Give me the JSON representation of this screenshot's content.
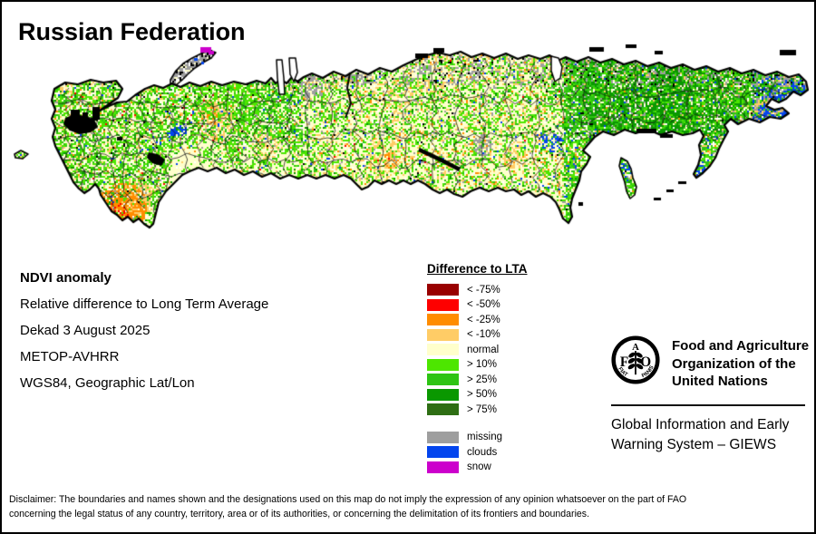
{
  "page": {
    "title": "Russian Federation"
  },
  "info": {
    "heading": "NDVI anomaly",
    "line1": "Relative difference to Long Term Average",
    "line2": "Dekad 3 August 2025",
    "line3": "METOP-AVHRR",
    "line4": "WGS84, Geographic Lat/Lon"
  },
  "legend": {
    "title": "Difference to LTA",
    "items": [
      {
        "label": "< -75%",
        "color": "#990000"
      },
      {
        "label": "< -50%",
        "color": "#FE0000"
      },
      {
        "label": "< -25%",
        "color": "#FF8C00"
      },
      {
        "label": "< -10%",
        "color": "#FFCC66"
      },
      {
        "label": "normal",
        "color": "#FFFFCC"
      },
      {
        "label": "> 10%",
        "color": "#4DE600"
      },
      {
        "label": "> 25%",
        "color": "#2EC414"
      },
      {
        "label": "> 50%",
        "color": "#0A9800"
      },
      {
        "label": "> 75%",
        "color": "#2E6E14"
      }
    ],
    "extra_items": [
      {
        "label": "missing",
        "color": "#9E9E9E"
      },
      {
        "label": "clouds",
        "color": "#0345EE"
      },
      {
        "label": "snow",
        "color": "#CC00CC"
      }
    ]
  },
  "fao": {
    "org_line1": "Food and Agriculture",
    "org_line2": "Organization of the",
    "org_line3": "United Nations",
    "giews_line1": "Global Information and Early",
    "giews_line2": "Warning System – GIEWS",
    "logo_letter_f": "F",
    "logo_letter_a": "A",
    "logo_letter_o": "O",
    "logo_motto_left": "FIAT",
    "logo_motto_right": "PANIS"
  },
  "disclaimer": {
    "line1": "Disclaimer: The boundaries and names shown and the designations used on this map do not imply the expression of any opinion whatsoever on the part of FAO",
    "line2": "concerning the legal status of any country, territory, area or of its authorities, or concerning the delimitation of its frontiers and boundaries."
  },
  "map": {
    "palette": {
      "darkRed": "#990000",
      "red": "#FE0000",
      "orange": "#FF8C00",
      "lightOrange": "#FFCC66",
      "cream": "#FFFFCC",
      "green1": "#4DE600",
      "green2": "#2EC414",
      "green3": "#0A9800",
      "green4": "#2E6E14",
      "gray": "#9E9E9E",
      "blue": "#0345EE",
      "magenta": "#CC00CC",
      "black": "#000000",
      "white": "#FFFFFF"
    }
  }
}
